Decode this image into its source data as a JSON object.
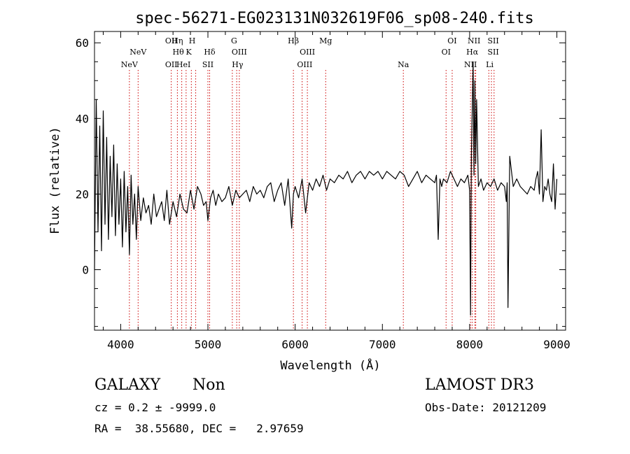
{
  "chart_data": {
    "type": "line",
    "title": "spec-56271-EG023131N032619F06_sp08-240.fits",
    "xlabel": "Wavelength (Å)",
    "ylabel": "Flux (relative)",
    "xlim": [
      3700,
      9100
    ],
    "ylim": [
      -16,
      63
    ],
    "x_ticks": [
      4000,
      5000,
      6000,
      7000,
      8000,
      9000
    ],
    "y_ticks": [
      0,
      20,
      40,
      60
    ],
    "line_color": "#000000",
    "marker_color": "#cc0000",
    "spectrum": {
      "x": [
        3700,
        3720,
        3740,
        3760,
        3780,
        3800,
        3820,
        3840,
        3860,
        3880,
        3900,
        3920,
        3940,
        3960,
        3980,
        4000,
        4020,
        4040,
        4060,
        4080,
        4100,
        4120,
        4140,
        4160,
        4180,
        4200,
        4230,
        4260,
        4290,
        4320,
        4350,
        4380,
        4410,
        4440,
        4470,
        4500,
        4530,
        4560,
        4600,
        4640,
        4680,
        4720,
        4760,
        4800,
        4840,
        4880,
        4920,
        4950,
        4980,
        5000,
        5030,
        5060,
        5090,
        5120,
        5160,
        5200,
        5240,
        5280,
        5320,
        5360,
        5400,
        5440,
        5480,
        5520,
        5560,
        5600,
        5640,
        5680,
        5720,
        5760,
        5800,
        5840,
        5880,
        5920,
        5960,
        5980,
        6000,
        6040,
        6080,
        6120,
        6160,
        6200,
        6240,
        6280,
        6320,
        6360,
        6400,
        6450,
        6500,
        6550,
        6600,
        6650,
        6700,
        6750,
        6800,
        6850,
        6900,
        6950,
        7000,
        7050,
        7100,
        7150,
        7200,
        7250,
        7300,
        7350,
        7400,
        7450,
        7500,
        7550,
        7600,
        7620,
        7640,
        7660,
        7680,
        7700,
        7740,
        7780,
        7820,
        7860,
        7900,
        7940,
        7980,
        8000,
        8010,
        8020,
        8030,
        8040,
        8050,
        8060,
        8070,
        8080,
        8100,
        8130,
        8160,
        8200,
        8240,
        8280,
        8320,
        8360,
        8400,
        8420,
        8430,
        8440,
        8460,
        8500,
        8540,
        8580,
        8620,
        8660,
        8700,
        8740,
        8760,
        8780,
        8800,
        8820,
        8840,
        8860,
        8880,
        8900,
        8920,
        8940,
        8960,
        8980,
        9000
      ],
      "flux": [
        0,
        45,
        10,
        38,
        5,
        42,
        12,
        35,
        8,
        30,
        14,
        33,
        9,
        28,
        12,
        24,
        6,
        26,
        10,
        22,
        4,
        25,
        12,
        20,
        8,
        22,
        13,
        19,
        15,
        17,
        12,
        20,
        14,
        16,
        18,
        13,
        21,
        12,
        18,
        14,
        20,
        16,
        15,
        21,
        16,
        22,
        20,
        17,
        18,
        13,
        19,
        21,
        17,
        20,
        18,
        19,
        22,
        17,
        21,
        19,
        20,
        21,
        18,
        22,
        20,
        21,
        19,
        22,
        23,
        18,
        21,
        23,
        17,
        24,
        11,
        20,
        22,
        19,
        24,
        15,
        23,
        21,
        24,
        22,
        25,
        21,
        24,
        23,
        25,
        24,
        26,
        23,
        25,
        26,
        24,
        26,
        25,
        26,
        24,
        26,
        25,
        24,
        26,
        25,
        22,
        24,
        26,
        23,
        25,
        24,
        23,
        25,
        8,
        24,
        22,
        24,
        23,
        26,
        24,
        22,
        24,
        23,
        25,
        21,
        -12,
        30,
        42,
        55,
        25,
        50,
        28,
        45,
        22,
        24,
        21,
        23,
        22,
        24,
        21,
        23,
        22,
        18,
        23,
        -10,
        30,
        22,
        24,
        22,
        21,
        20,
        22,
        21,
        24,
        26,
        20,
        37,
        18,
        22,
        21,
        24,
        20,
        18,
        28,
        16,
        24,
        14,
        18,
        12,
        0
      ]
    },
    "spectral_lines": [
      {
        "label": "NeV",
        "x": 4100,
        "row": 3
      },
      {
        "label": "NeV",
        "x": 4200,
        "row": 2
      },
      {
        "label": "OII",
        "x": 4580,
        "row": 1
      },
      {
        "label": "OII",
        "x": 4580,
        "row": 3
      },
      {
        "label": "Hη",
        "x": 4650,
        "row": 1
      },
      {
        "label": "Hθ",
        "x": 4660,
        "row": 2
      },
      {
        "label": "HeI",
        "x": 4720,
        "row": 3
      },
      {
        "label": "H",
        "x": 4820,
        "row": 1
      },
      {
        "label": "K",
        "x": 4780,
        "row": 2
      },
      {
        "label": "Hδ",
        "x": 5020,
        "row": 2
      },
      {
        "label": "SII",
        "x": 5000,
        "row": 3
      },
      {
        "label": "G",
        "x": 5300,
        "row": 1
      },
      {
        "label": "OIII",
        "x": 5360,
        "row": 2
      },
      {
        "label": "Hγ",
        "x": 5340,
        "row": 3
      },
      {
        "label": "Hβ",
        "x": 5980,
        "row": 1
      },
      {
        "label": "OIII",
        "x": 6140,
        "row": 2
      },
      {
        "label": "OIII",
        "x": 6110,
        "row": 3
      },
      {
        "label": "Mg",
        "x": 6350,
        "row": 1
      },
      {
        "label": "Na",
        "x": 7240,
        "row": 3
      },
      {
        "label": "OI",
        "x": 7800,
        "row": 1
      },
      {
        "label": "OI",
        "x": 7730,
        "row": 2
      },
      {
        "label": "NII",
        "x": 8050,
        "row": 1
      },
      {
        "label": "Hα",
        "x": 8030,
        "row": 2
      },
      {
        "label": "NII",
        "x": 8010,
        "row": 3
      },
      {
        "label": "SII",
        "x": 8270,
        "row": 1
      },
      {
        "label": "SII",
        "x": 8270,
        "row": 2
      },
      {
        "label": "Li",
        "x": 8230,
        "row": 3
      }
    ],
    "marker_lines_x": [
      4100,
      4200,
      4580,
      4650,
      4700,
      4750,
      4810,
      4860,
      5000,
      5020,
      5280,
      5330,
      5360,
      5980,
      6080,
      6140,
      6350,
      7240,
      7730,
      7800,
      8010,
      8030,
      8060,
      8070,
      8220,
      8250,
      8280
    ]
  },
  "info": {
    "object_class": "GALAXY",
    "subclass": "Non",
    "survey": "LAMOST DR3",
    "redshift_line": "cz = 0.2 ± -9999.0",
    "obs_date": "Obs-Date: 20121209",
    "coords": "RA =  38.55680, DEC =   2.97659"
  }
}
